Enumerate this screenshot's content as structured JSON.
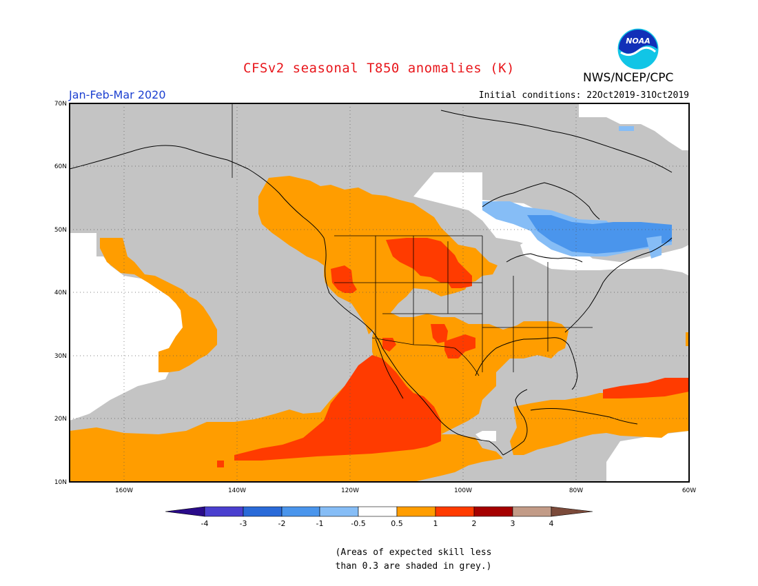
{
  "title": "CFSv2 seasonal T850 anomalies (K)",
  "agency": "NWS/NCEP/CPC",
  "logo_text": "NOAA",
  "period": "Jan-Feb-Mar 2020",
  "initial_conditions": "Initial conditions: 22Oct2019-31Oct2019",
  "note": [
    "(Areas of expected skill less",
    "than 0.3 are shaded in grey.)"
  ],
  "map": {
    "lon_labels": [
      "160W",
      "140W",
      "120W",
      "100W",
      "80W",
      "60W"
    ],
    "lat_labels": [
      "70N",
      "60N",
      "50N",
      "40N",
      "30N",
      "20N",
      "10N"
    ]
  },
  "colorbar": {
    "tick_labels": [
      "-4",
      "-3",
      "-2",
      "-1",
      "-0.5",
      "0.5",
      "1",
      "2",
      "3",
      "4"
    ],
    "colors": [
      "#2a0b8a",
      "#4a3fcf",
      "#2a6ad8",
      "#4a95ec",
      "#86bdf6",
      "#ffffff",
      "#ff9d00",
      "#ff3b00",
      "#a50000",
      "#c29b87",
      "#7b4a3a"
    ]
  },
  "colors": {
    "low_skill_grey": "#c4c4c4",
    "warm_05_1": "#ff9d00",
    "warm_1_2": "#ff3b00",
    "cool_05_1": "#86bdf6",
    "cool_1_2": "#4a95ec",
    "title_red": "#e8161b",
    "period_blue": "#1b3fd0"
  }
}
